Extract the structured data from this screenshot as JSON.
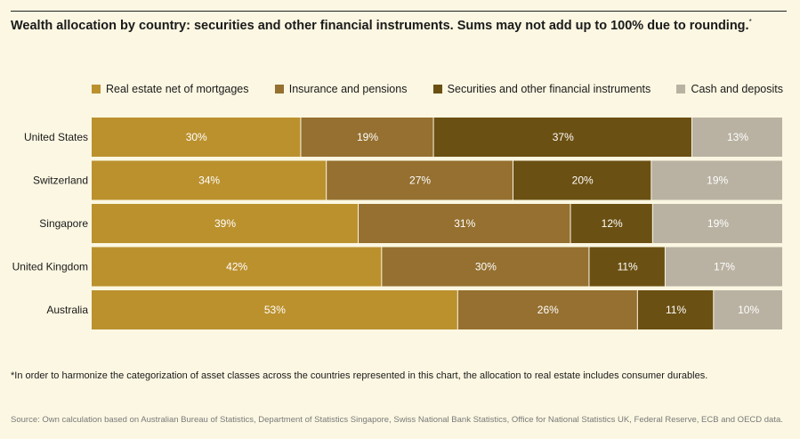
{
  "header": {
    "title": "Wealth allocation by country: securities and other financial instruments. Sums may not add up to 100% due to rounding.",
    "title_mark": "*"
  },
  "chart_data": {
    "type": "bar",
    "orientation": "horizontal",
    "stacked": true,
    "categories": [
      "United States",
      "Switzerland",
      "Singapore",
      "United Kingdom",
      "Australia"
    ],
    "series": [
      {
        "name": "Real estate net of mortgages",
        "color": "#bb912e",
        "values": [
          30,
          34,
          39,
          42,
          53
        ],
        "labels": [
          "30%",
          "34%",
          "39%",
          "42%",
          "53%"
        ]
      },
      {
        "name": "Insurance and pensions",
        "color": "#957030",
        "values": [
          19,
          27,
          31,
          30,
          26
        ],
        "labels": [
          "19%",
          "27%",
          "31%",
          "30%",
          "26%"
        ]
      },
      {
        "name": "Securities and other financial instruments",
        "color": "#6b5013",
        "values": [
          37,
          20,
          12,
          11,
          11
        ],
        "labels": [
          "37%",
          "20%",
          "12%",
          "11%",
          "11%"
        ]
      },
      {
        "name": "Cash and deposits",
        "color": "#b9b2a2",
        "values": [
          13,
          19,
          19,
          17,
          10
        ],
        "labels": [
          "13%",
          "19%",
          "19%",
          "17%",
          "10%"
        ]
      }
    ],
    "legend_position": "top-right",
    "grid": false
  },
  "footnote": "*In order to harmonize the categorization of asset classes across the countries represented in this chart, the allocation to real estate includes consumer durables.",
  "source": "Source: Own calculation based on Australian Bureau of Statistics, Department of Statistics Singapore, Swiss National Bank Statistics, Office for National Statistics UK, Federal Reserve, ECB and OECD data."
}
